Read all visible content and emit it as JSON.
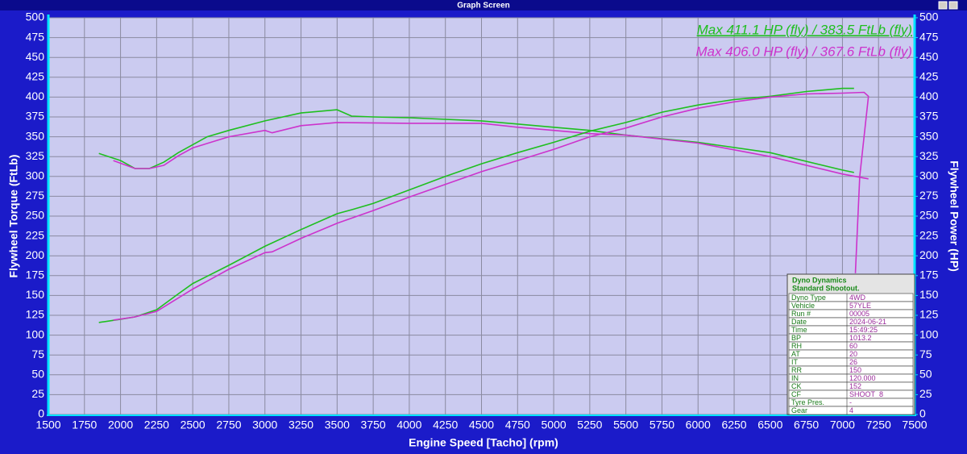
{
  "window_title": "Graph Screen",
  "chart_data": {
    "type": "line",
    "xlabel": "Engine Speed [Tacho] (rpm)",
    "ylabel": "Flywheel Torque (FtLb)",
    "y2label": "Flywheel Power (HP)",
    "annotations": [
      {
        "text": "Max 411.1 HP (fly) / 383.5 FtLb (fly)",
        "color": "#1fbf1f"
      },
      {
        "text": "Max 406.0 HP (fly) / 367.6 FtLb (fly)",
        "color": "#cc33cc"
      }
    ],
    "xlim": [
      1500,
      7500
    ],
    "xticks": [
      1500,
      1750,
      2000,
      2250,
      2500,
      2750,
      3000,
      3250,
      3500,
      3750,
      4000,
      4250,
      4500,
      4750,
      5000,
      5250,
      5500,
      5750,
      6000,
      6250,
      6500,
      6750,
      7000,
      7250,
      7500
    ],
    "ylim": [
      0,
      500
    ],
    "yticks": [
      0,
      25,
      50,
      75,
      100,
      125,
      150,
      175,
      200,
      225,
      250,
      275,
      300,
      325,
      350,
      375,
      400,
      425,
      450,
      475,
      500
    ],
    "y2lim": [
      0,
      500
    ],
    "y2ticks": [
      0,
      25,
      50,
      75,
      100,
      125,
      150,
      175,
      200,
      225,
      250,
      275,
      300,
      325,
      350,
      375,
      400,
      425,
      450,
      475,
      500
    ],
    "grid": true,
    "series": [
      {
        "color": "#1fbf1f",
        "axis": "y",
        "x": [
          1850,
          2000,
          2100,
          2200,
          2300,
          2400,
          2500,
          2600,
          2750,
          3000,
          3250,
          3500,
          3600,
          3750,
          4000,
          4500,
          5000,
          5250,
          5500,
          6000,
          6500,
          7000,
          7080
        ],
        "values": [
          329,
          320,
          310,
          310,
          318,
          330,
          340,
          350,
          358,
          370,
          380,
          384,
          376,
          375,
          374,
          370,
          362,
          358,
          352,
          343,
          330,
          308,
          305
        ]
      },
      {
        "color": "#cc33cc",
        "axis": "y",
        "x": [
          1950,
          2100,
          2200,
          2300,
          2400,
          2500,
          2750,
          3000,
          3050,
          3250,
          3500,
          4000,
          4500,
          4750,
          5000,
          5250,
          5500,
          6000,
          6500,
          7000,
          7180
        ],
        "values": [
          320,
          310,
          310,
          314,
          326,
          336,
          350,
          358,
          355,
          364,
          368,
          367,
          367,
          362,
          358,
          354,
          352,
          342,
          325,
          303,
          297
        ]
      },
      {
        "color": "#1fbf1f",
        "axis": "y2",
        "x": [
          1850,
          2000,
          2100,
          2250,
          2400,
          2500,
          2750,
          3000,
          3250,
          3500,
          3600,
          3750,
          4000,
          4250,
          4500,
          4750,
          5000,
          5250,
          5500,
          5750,
          6000,
          6250,
          6500,
          6750,
          7000,
          7080
        ],
        "values": [
          116,
          120,
          123,
          132,
          152,
          165,
          188,
          212,
          233,
          253,
          258,
          266,
          283,
          300,
          316,
          330,
          343,
          357,
          368,
          381,
          390,
          397,
          401,
          407,
          411,
          411
        ]
      },
      {
        "color": "#cc33cc",
        "axis": "y2",
        "x": [
          1950,
          2100,
          2250,
          2500,
          2750,
          3000,
          3050,
          3250,
          3500,
          3750,
          4000,
          4250,
          4500,
          4750,
          5000,
          5250,
          5500,
          5750,
          6000,
          6250,
          6500,
          6750,
          7000,
          7150,
          7180,
          7120,
          7090
        ],
        "values": [
          119,
          123,
          130,
          158,
          183,
          204,
          205,
          222,
          241,
          257,
          274,
          290,
          306,
          320,
          334,
          350,
          361,
          375,
          386,
          394,
          400,
          404,
          405,
          406,
          401,
          300,
          178
        ]
      }
    ]
  },
  "info_box": {
    "title": [
      "Dyno Dynamics",
      "Standard Shootout."
    ],
    "rows": [
      [
        "Dyno Type",
        "4WD"
      ],
      [
        "Vehicle",
        "57YLE"
      ],
      [
        "Run #",
        "00005"
      ],
      [
        "Date",
        "2024-06-21"
      ],
      [
        "Time",
        "15:49:25"
      ],
      [
        "BP",
        "1013.2"
      ],
      [
        "RH",
        "60"
      ],
      [
        "AT",
        "20"
      ],
      [
        "IT",
        "26"
      ],
      [
        "RR",
        "150"
      ],
      [
        "IN",
        "120.000"
      ],
      [
        "CK",
        "152"
      ],
      [
        "CF",
        "SHOOT_8"
      ],
      [
        "Tyre Pres.",
        "-"
      ],
      [
        "Gear",
        "4"
      ]
    ]
  }
}
